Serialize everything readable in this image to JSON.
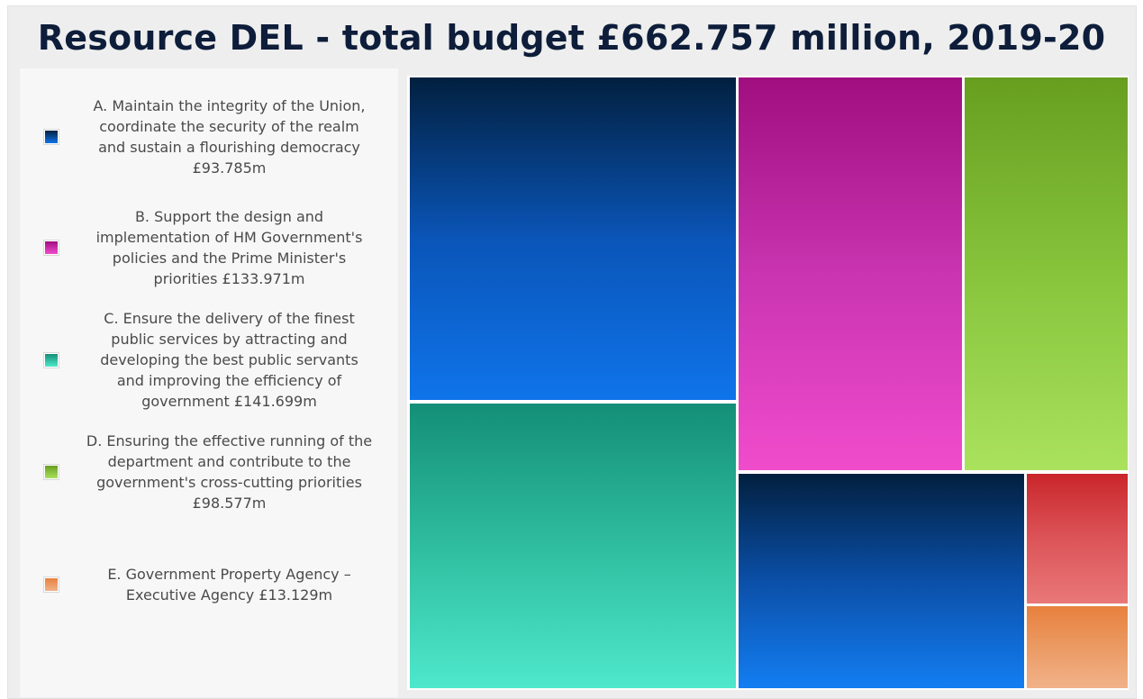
{
  "chart_data": {
    "type": "treemap",
    "title": "Resource DEL - total budget £662.757 million, 2019-20",
    "legend_placement": "left",
    "series": [
      {
        "key": "A",
        "lines": [
          "A. Maintain the integrity of the Union,",
          "coordinate the security of the realm",
          "and sustain a flourishing democracy",
          "£93.785m"
        ],
        "value": 93.785,
        "color_top": "#02203f",
        "color_mid": "#0a55b8",
        "color_bottom": "#0f74ea"
      },
      {
        "key": "B",
        "lines": [
          "B. Support the design and",
          "implementation of HM Government's",
          "policies and the Prime Minister's",
          "priorities £133.971m"
        ],
        "value": 133.971,
        "color_top": "#a00e80",
        "color_mid": "#c934b0",
        "color_bottom": "#f04ccc"
      },
      {
        "key": "C",
        "lines": [
          "C. Ensure the delivery of the finest",
          "public services by attracting and",
          "developing the best public servants",
          "and improving the efficiency of",
          "government £141.699m"
        ],
        "value": 141.699,
        "color_top": "#148f77",
        "color_mid": "#2fbd9f",
        "color_bottom": "#4ee8cc"
      },
      {
        "key": "D",
        "lines": [
          "D. Ensuring the effective running of the",
          "department and contribute to the",
          "government's cross-cutting priorities",
          "£98.577m"
        ],
        "value": 98.577,
        "color_top": "#679e1f",
        "color_mid": "#87c43c",
        "color_bottom": "#aae25e"
      },
      {
        "key": "E",
        "lines": [
          "E. Government Property Agency –",
          "Executive Agency £13.129m"
        ],
        "value": 13.129,
        "color_top": "#e8803e",
        "color_mid": "#eb9a63",
        "color_bottom": "#f1b28a"
      }
    ],
    "unlabelled_tiles": [
      {
        "color_top": "#02203f",
        "color_mid": "#0b4fa8",
        "color_bottom": "#137ef2"
      },
      {
        "color_top": "#c9262b",
        "color_mid": "#dc5458",
        "color_bottom": "#e97878"
      }
    ]
  }
}
